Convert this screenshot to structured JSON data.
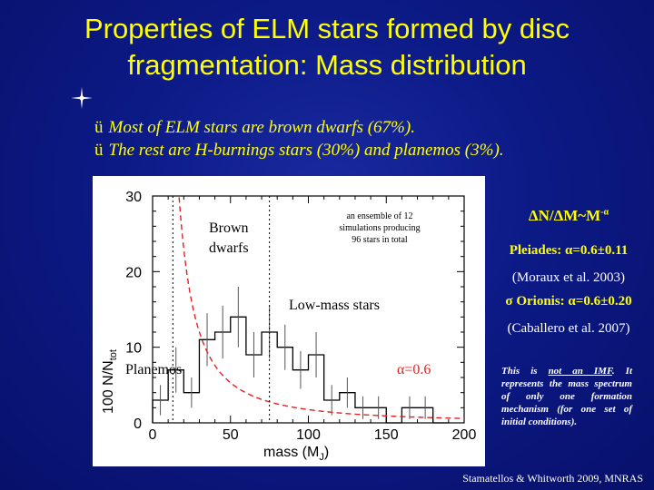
{
  "title_line1": "Properties of ELM stars formed by disc",
  "title_line2": "fragmentation: Mass distribution",
  "bullets": [
    {
      "check": "ü",
      "text": "Most of ELM stars are brown dwarfs (67%)."
    },
    {
      "check": "ü",
      "text": "The rest are H-burnings stars (30%) and planemos (3%)."
    }
  ],
  "plot": {
    "ylabel_main": "100 N/N",
    "ylabel_sub": "tot",
    "xlabel_main": "mass (M",
    "xlabel_sub": "J",
    "xlabel_close": ")",
    "label_brown": "Brown dwarfs",
    "label_ensemble": "an ensemble of 12 simulations producing 96 stars in total",
    "label_lowmass": "Low-mass stars",
    "label_planemos": "Planemos",
    "label_alpha": "α=0.6",
    "fit_color": "#dd2222",
    "brown_dwarf_line_color": "#000000"
  },
  "chart_data": {
    "type": "histogram",
    "xlabel": "mass (M_J)",
    "ylabel": "100 N/N_tot",
    "xlim": [
      0,
      200
    ],
    "ylim": [
      0,
      30
    ],
    "x_ticks": [
      0,
      50,
      100,
      150,
      200
    ],
    "y_ticks": [
      0,
      10,
      20,
      30
    ],
    "bin_width": 10,
    "bins": [
      {
        "x0": 0,
        "x1": 10,
        "y": 3,
        "err": 2
      },
      {
        "x0": 10,
        "x1": 20,
        "y": 7,
        "err": 3
      },
      {
        "x0": 20,
        "x1": 30,
        "y": 4,
        "err": 2
      },
      {
        "x0": 30,
        "x1": 40,
        "y": 11,
        "err": 3.5
      },
      {
        "x0": 40,
        "x1": 50,
        "y": 12,
        "err": 3.5
      },
      {
        "x0": 50,
        "x1": 60,
        "y": 14,
        "err": 4
      },
      {
        "x0": 60,
        "x1": 70,
        "y": 9,
        "err": 3
      },
      {
        "x0": 70,
        "x1": 80,
        "y": 12,
        "err": 3.5
      },
      {
        "x0": 80,
        "x1": 90,
        "y": 10,
        "err": 3
      },
      {
        "x0": 90,
        "x1": 100,
        "y": 7,
        "err": 2.5
      },
      {
        "x0": 100,
        "x1": 110,
        "y": 9,
        "err": 3
      },
      {
        "x0": 110,
        "x1": 120,
        "y": 3,
        "err": 2
      },
      {
        "x0": 120,
        "x1": 130,
        "y": 4,
        "err": 2
      },
      {
        "x0": 130,
        "x1": 140,
        "y": 2,
        "err": 1.5
      },
      {
        "x0": 140,
        "x1": 150,
        "y": 2,
        "err": 1.5
      },
      {
        "x0": 150,
        "x1": 160,
        "y": 0,
        "err": 0
      },
      {
        "x0": 160,
        "x1": 170,
        "y": 2,
        "err": 1.5
      },
      {
        "x0": 170,
        "x1": 180,
        "y": 2,
        "err": 1.5
      },
      {
        "x0": 180,
        "x1": 190,
        "y": 0,
        "err": 0
      }
    ],
    "fit": {
      "name": "α=0.6",
      "form": "power-law",
      "alpha": 0.6,
      "norm_at_20": 23
    },
    "vertical_lines": [
      13,
      75
    ]
  },
  "right_panel": {
    "formula": "ΔN/ΔM~M",
    "formula_sup": "-α",
    "pleiades": "Pleiades: α=0.6±0.11",
    "pleiades_ref": "(Moraux et al. 2003)",
    "orionis": "σ Orionis: α=0.6±0.20",
    "orionis_ref": "(Caballero et al. 2007)",
    "note_part1": "This is ",
    "note_underlined": "not an IMF",
    "note_part2": ". It represents the mass spectrum of only one formation mechanism (for one set of initial conditions).",
    "citation": "Stamatellos & Whitworth 2009, MNRAS"
  }
}
